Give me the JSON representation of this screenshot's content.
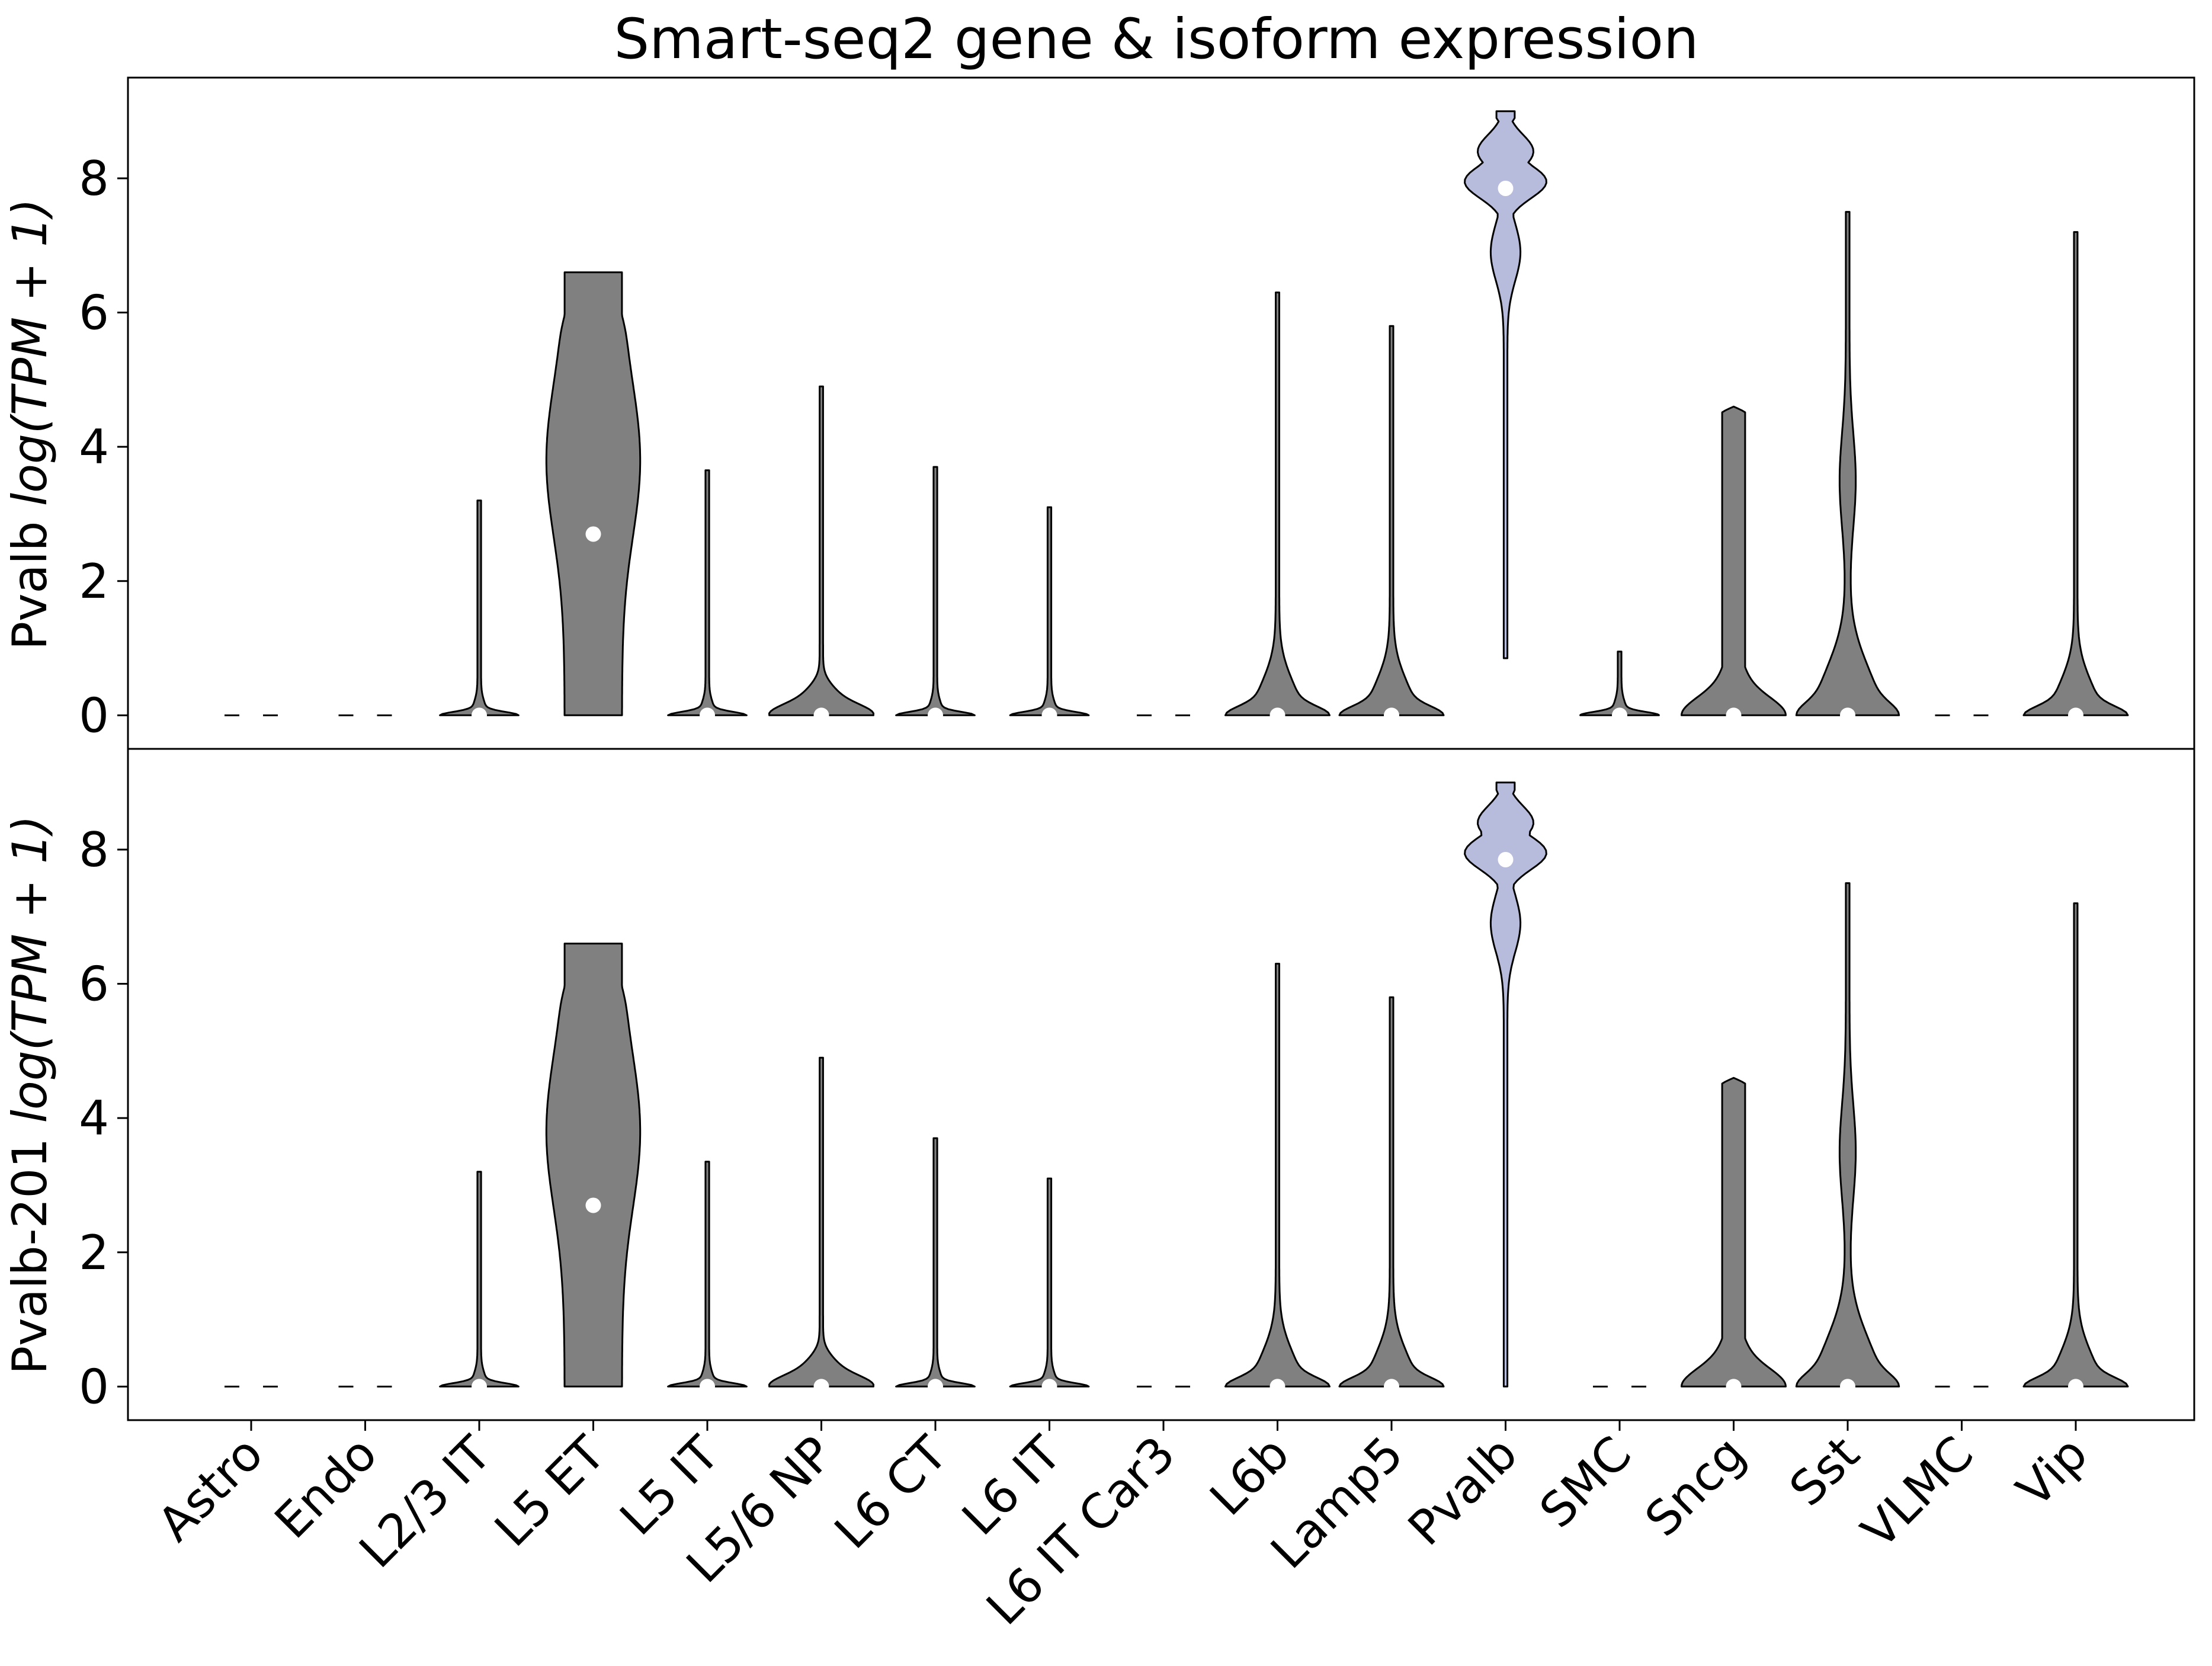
{
  "chart_data": {
    "type": "violin",
    "title": "Smart-seq2 gene & isoform expression",
    "categories": [
      "Astro",
      "Endo",
      "L2/3 IT",
      "L5 ET",
      "L5 IT",
      "L5/6 NP",
      "L6 CT",
      "L6 IT",
      "L6 IT Car3",
      "L6b",
      "Lamp5",
      "Pvalb",
      "SMC",
      "Sncg",
      "Sst",
      "VLMC",
      "Vip"
    ],
    "ylim": [
      -0.5,
      9.5
    ],
    "yticks": [
      0,
      2,
      4,
      6,
      8
    ],
    "grid": false,
    "colors": {
      "default": "#808080",
      "highlight": "#b8bcdc",
      "median_dot": "#ffffff",
      "outline": "#000000"
    },
    "highlight_category": "Pvalb",
    "panels": [
      {
        "ylabel_plain": "Pvalb ",
        "ylabel_math": "log(TPM + 1)",
        "violins": [
          {
            "category": "Astro",
            "max": 0,
            "median": null,
            "shape": "empty"
          },
          {
            "category": "Endo",
            "max": 0,
            "median": null,
            "shape": "empty"
          },
          {
            "category": "L2/3 IT",
            "max": 3.2,
            "median": 0,
            "shape": "flat"
          },
          {
            "category": "L5 ET",
            "max": 6.6,
            "median": 2.7,
            "shape": "broad"
          },
          {
            "category": "L5 IT",
            "max": 3.65,
            "median": 0,
            "shape": "flat"
          },
          {
            "category": "L5/6 NP",
            "max": 4.9,
            "median": 0,
            "shape": "small"
          },
          {
            "category": "L6 CT",
            "max": 3.7,
            "median": 0,
            "shape": "flat"
          },
          {
            "category": "L6 IT",
            "max": 3.1,
            "median": 0,
            "shape": "flat"
          },
          {
            "category": "L6 IT Car3",
            "max": 0,
            "median": null,
            "shape": "empty"
          },
          {
            "category": "L6b",
            "max": 6.3,
            "median": 0,
            "shape": "skewed"
          },
          {
            "category": "Lamp5",
            "max": 5.8,
            "median": 0,
            "shape": "skewed"
          },
          {
            "category": "Pvalb",
            "min": 0.85,
            "max": 9.0,
            "median": 7.85,
            "shape": "top"
          },
          {
            "category": "SMC",
            "max": 0.95,
            "median": 0,
            "shape": "flat"
          },
          {
            "category": "Sncg",
            "max": 4.6,
            "median": 0,
            "shape": "column"
          },
          {
            "category": "Sst",
            "max": 7.5,
            "median": 0,
            "shape": "tall"
          },
          {
            "category": "VLMC",
            "max": 0,
            "median": null,
            "shape": "empty"
          },
          {
            "category": "Vip",
            "max": 7.2,
            "median": 0,
            "shape": "skewed"
          }
        ]
      },
      {
        "ylabel_plain": "Pvalb-201 ",
        "ylabel_math": "log(TPM + 1)",
        "violins": [
          {
            "category": "Astro",
            "max": 0,
            "median": null,
            "shape": "empty"
          },
          {
            "category": "Endo",
            "max": 0,
            "median": null,
            "shape": "empty"
          },
          {
            "category": "L2/3 IT",
            "max": 3.2,
            "median": 0,
            "shape": "flat"
          },
          {
            "category": "L5 ET",
            "max": 6.6,
            "median": 2.7,
            "shape": "broad"
          },
          {
            "category": "L5 IT",
            "max": 3.35,
            "median": 0,
            "shape": "flat"
          },
          {
            "category": "L5/6 NP",
            "max": 4.9,
            "median": 0,
            "shape": "small"
          },
          {
            "category": "L6 CT",
            "max": 3.7,
            "median": 0,
            "shape": "flat"
          },
          {
            "category": "L6 IT",
            "max": 3.1,
            "median": 0,
            "shape": "flat"
          },
          {
            "category": "L6 IT Car3",
            "max": 0,
            "median": null,
            "shape": "empty"
          },
          {
            "category": "L6b",
            "max": 6.3,
            "median": 0,
            "shape": "skewed"
          },
          {
            "category": "Lamp5",
            "max": 5.8,
            "median": 0,
            "shape": "skewed"
          },
          {
            "category": "Pvalb",
            "min": 0,
            "max": 9.0,
            "median": 7.85,
            "shape": "top"
          },
          {
            "category": "SMC",
            "max": 0,
            "median": null,
            "shape": "empty"
          },
          {
            "category": "Sncg",
            "max": 4.6,
            "median": 0,
            "shape": "column"
          },
          {
            "category": "Sst",
            "max": 7.5,
            "median": 0,
            "shape": "tall"
          },
          {
            "category": "VLMC",
            "max": 0,
            "median": null,
            "shape": "empty"
          },
          {
            "category": "Vip",
            "max": 7.2,
            "median": 0,
            "shape": "skewed"
          }
        ]
      }
    ]
  }
}
